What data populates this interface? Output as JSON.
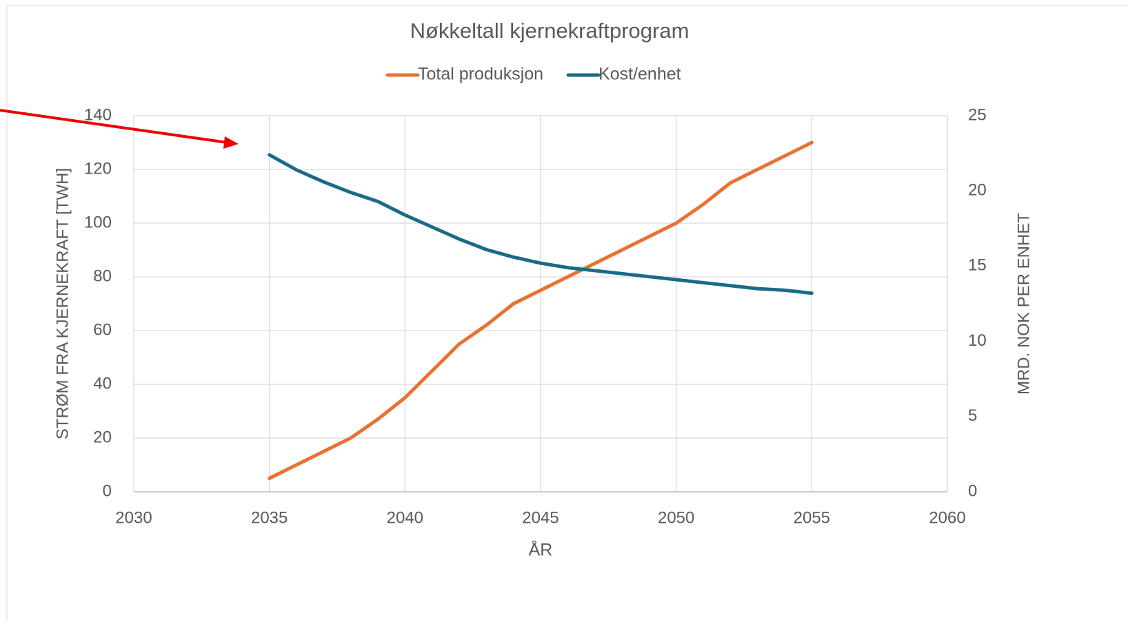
{
  "chart_data": {
    "type": "line",
    "title": "Nøkkeltall kjernekraftprogram",
    "xlabel": "ÅR",
    "ylabel": "STRØM FRA KJERNEKRAFT [TWH]",
    "y2label": "MRD. NOK PER ENHET",
    "x": [
      2035,
      2036,
      2037,
      2038,
      2039,
      2040,
      2041,
      2042,
      2043,
      2044,
      2045,
      2046,
      2047,
      2048,
      2049,
      2050,
      2051,
      2052,
      2053,
      2054,
      2055
    ],
    "series": [
      {
        "name": "Total produksjon",
        "color": "#e97132",
        "values": [
          5,
          10,
          15,
          20,
          27,
          35,
          45,
          55,
          62,
          70,
          75,
          80,
          85,
          90,
          95,
          100,
          107,
          115,
          120,
          125,
          130
        ]
      },
      {
        "name": "Kost/enhet",
        "color": "#196b87",
        "axis": "y2",
        "values": [
          22.4,
          21.4,
          20.6,
          19.9,
          19.3,
          18.4,
          17.6,
          16.8,
          16.1,
          15.6,
          15.2,
          14.9,
          14.7,
          14.5,
          14.3,
          14.1,
          13.9,
          13.7,
          13.5,
          13.4,
          13.2
        ]
      }
    ],
    "xlim": [
      2030,
      2060
    ],
    "xticks": [
      2030,
      2035,
      2040,
      2045,
      2050,
      2055,
      2060
    ],
    "ylim": [
      0,
      140
    ],
    "yticks": [
      0,
      20,
      40,
      60,
      80,
      100,
      120,
      140
    ],
    "y2lim": [
      0,
      25
    ],
    "y2ticks": [
      0,
      5,
      10,
      15,
      20,
      25
    ],
    "grid": true,
    "legend": "top"
  }
}
